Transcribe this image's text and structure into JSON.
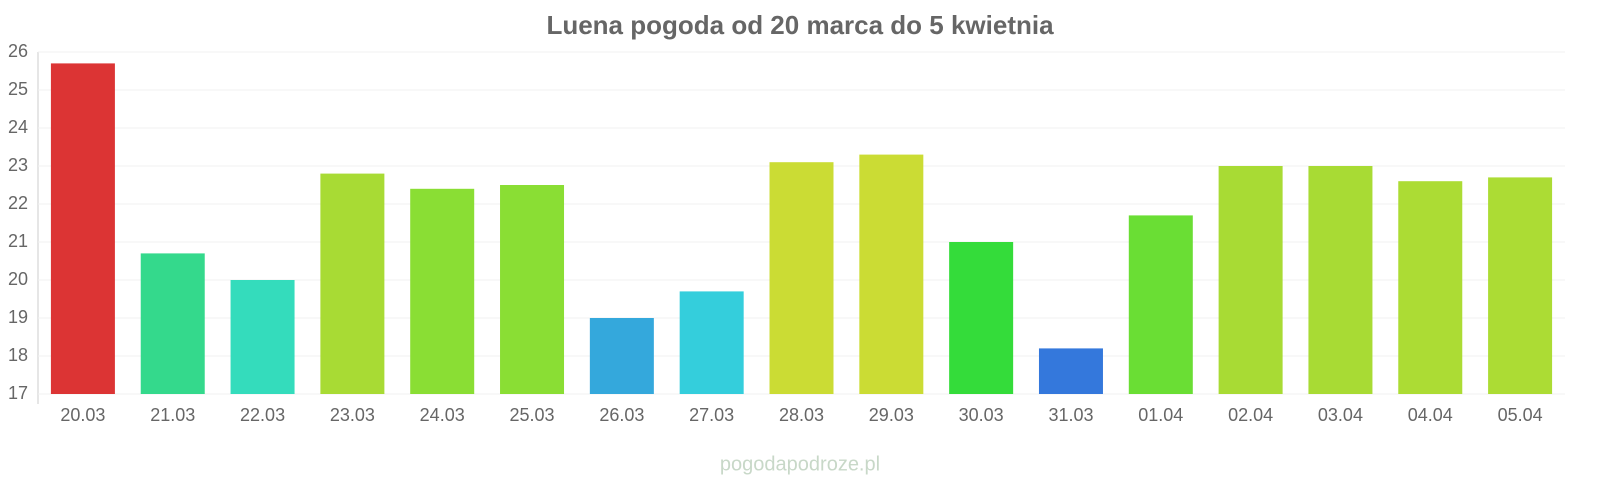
{
  "chart_data": {
    "type": "bar",
    "title": "Luena pogoda od 20 marca do 5 kwietnia",
    "categories": [
      "20.03",
      "21.03",
      "22.03",
      "23.03",
      "24.03",
      "25.03",
      "26.03",
      "27.03",
      "28.03",
      "29.03",
      "30.03",
      "31.03",
      "01.04",
      "02.04",
      "03.04",
      "04.04",
      "05.04"
    ],
    "values": [
      25.7,
      20.7,
      20.0,
      22.8,
      22.4,
      22.5,
      19.0,
      19.7,
      23.1,
      23.3,
      21.0,
      18.2,
      21.7,
      23.0,
      23.0,
      22.6,
      22.7
    ],
    "colors": [
      "#dc3434",
      "#34d98c",
      "#34dcbc",
      "#a8db34",
      "#8ade34",
      "#8ade34",
      "#34a8dc",
      "#34cedc",
      "#cbdc34",
      "#cbdc34",
      "#34dc3a",
      "#3478dc",
      "#6ade34",
      "#a8db34",
      "#a8db34",
      "#acdc34",
      "#acdc34"
    ],
    "ylim": [
      17,
      26
    ],
    "yticks": [
      17,
      18,
      19,
      20,
      21,
      22,
      23,
      24,
      25,
      26
    ],
    "grid": true,
    "watermark": "pogodapodroze.pl"
  }
}
